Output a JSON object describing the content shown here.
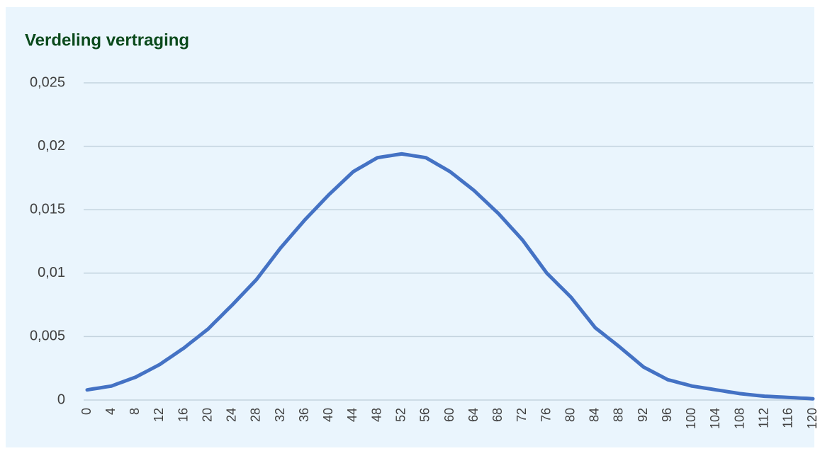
{
  "chart_data": {
    "type": "line",
    "title": "Verdeling vertraging",
    "x": [
      0,
      1,
      2,
      3,
      4,
      5,
      6,
      7,
      8,
      9,
      10,
      11,
      12,
      13,
      14,
      15,
      16,
      17,
      18,
      19,
      20,
      21,
      22,
      23,
      24,
      25,
      26,
      27,
      28,
      29,
      30,
      31,
      32,
      33,
      34,
      35,
      36,
      37,
      38,
      39,
      40,
      41,
      42,
      43,
      44,
      45,
      46,
      47,
      48,
      49,
      50,
      51,
      52,
      53,
      54,
      55,
      56,
      57,
      58,
      59,
      60,
      61,
      62,
      63,
      64,
      65,
      66,
      67,
      68,
      69,
      70,
      71,
      72,
      73,
      74,
      75,
      76,
      77,
      78,
      79,
      80,
      81,
      82,
      83,
      84,
      85,
      86,
      87,
      88,
      89,
      90,
      91,
      92,
      93,
      94,
      95,
      96,
      97,
      98,
      99,
      100,
      101,
      102,
      103,
      104,
      105,
      106,
      107,
      108,
      109,
      110,
      111,
      112,
      113,
      114,
      115,
      116,
      117,
      118,
      119,
      120
    ],
    "series": [
      {
        "color": "#4472c4",
        "values": [
          0.0008,
          0.00088,
          0.00095,
          0.00103,
          0.0011,
          0.00128,
          0.00145,
          0.00163,
          0.0018,
          0.00205,
          0.0023,
          0.00255,
          0.0028,
          0.00313,
          0.00345,
          0.00378,
          0.0041,
          0.00448,
          0.00485,
          0.00523,
          0.0056,
          0.00608,
          0.00655,
          0.00703,
          0.0075,
          0.008,
          0.0085,
          0.009,
          0.0095,
          0.01013,
          0.01075,
          0.01138,
          0.012,
          0.01255,
          0.0131,
          0.01365,
          0.0142,
          0.0147,
          0.0152,
          0.0157,
          0.0162,
          0.01665,
          0.0171,
          0.01755,
          0.018,
          0.01828,
          0.01855,
          0.01883,
          0.0191,
          0.01918,
          0.01925,
          0.01933,
          0.0194,
          0.01933,
          0.01925,
          0.01918,
          0.0191,
          0.01883,
          0.01855,
          0.01828,
          0.018,
          0.01763,
          0.01725,
          0.01688,
          0.0165,
          0.01605,
          0.0156,
          0.01515,
          0.0147,
          0.01418,
          0.01365,
          0.01313,
          0.0126,
          0.01195,
          0.0113,
          0.01065,
          0.01,
          0.00953,
          0.00905,
          0.00858,
          0.0081,
          0.0075,
          0.0069,
          0.0063,
          0.0057,
          0.00533,
          0.00495,
          0.00458,
          0.0042,
          0.0038,
          0.0034,
          0.003,
          0.0026,
          0.00235,
          0.0021,
          0.00185,
          0.0016,
          0.00148,
          0.00135,
          0.00123,
          0.0011,
          0.00103,
          0.00095,
          0.00088,
          0.0008,
          0.00073,
          0.00065,
          0.00058,
          0.0005,
          0.00045,
          0.0004,
          0.00035,
          0.0003,
          0.00028,
          0.00025,
          0.00023,
          0.0002,
          0.00018,
          0.00015,
          0.00013,
          0.0001
        ]
      }
    ],
    "xlim": [
      0,
      120
    ],
    "xticks": [
      0,
      4,
      8,
      12,
      16,
      20,
      24,
      28,
      32,
      36,
      40,
      44,
      48,
      52,
      56,
      60,
      64,
      68,
      72,
      76,
      80,
      84,
      88,
      92,
      96,
      100,
      104,
      108,
      112,
      116,
      120
    ],
    "ylim": [
      0,
      0.025
    ],
    "yticks": [
      0,
      {
        "value": 0.005,
        "label": "0,005"
      },
      {
        "value": 0.01,
        "label": "0,01"
      },
      {
        "value": 0.015,
        "label": "0,015"
      },
      {
        "value": 0.02,
        "label": "0,02"
      },
      {
        "value": 0.025,
        "label": "0,025"
      }
    ],
    "grid": true
  }
}
